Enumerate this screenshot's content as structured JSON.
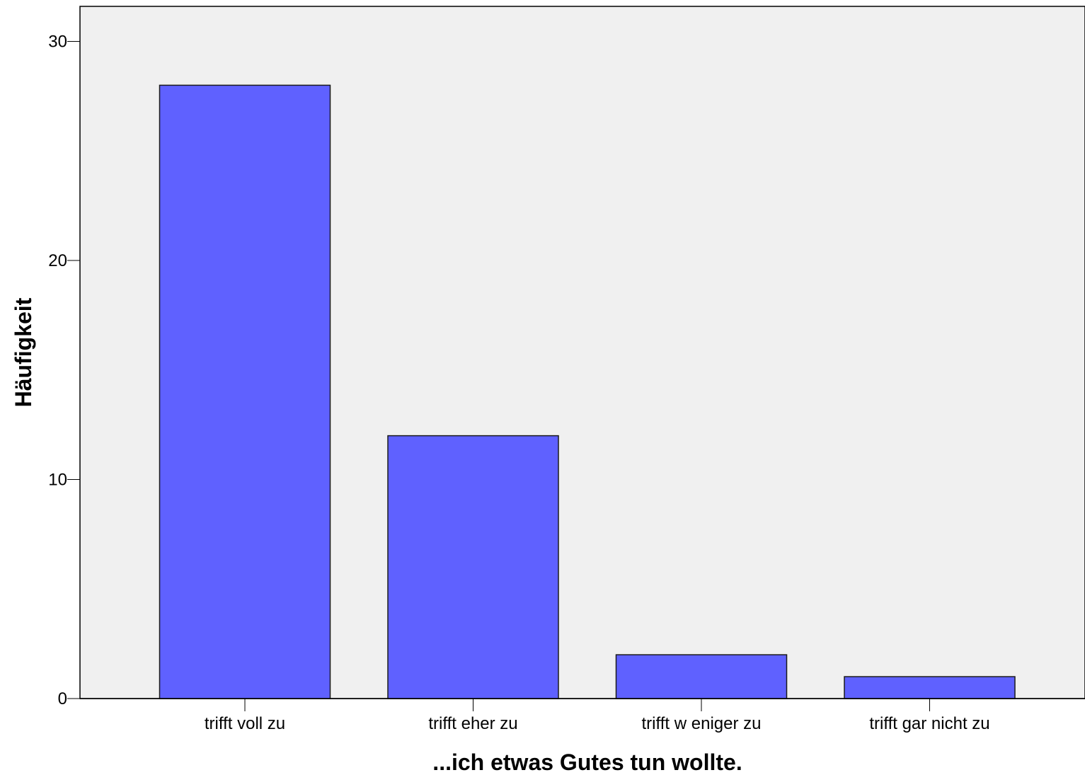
{
  "chart_data": {
    "type": "bar",
    "categories": [
      "trifft voll zu",
      "trifft eher zu",
      "trifft w eniger zu",
      "trifft gar nicht zu"
    ],
    "values": [
      28,
      12,
      2,
      1
    ],
    "xlabel": "...ich etwas Gutes tun wollte.",
    "ylabel": "Häufigkeit",
    "ylim": [
      0,
      31.6
    ],
    "yticks": [
      0,
      10,
      20,
      30
    ],
    "grid": false,
    "legend": "none",
    "colors": {
      "bar_fill": "#5f61ff",
      "bar_stroke": "#1a1a1a",
      "plot_background": "#f0f0f0",
      "axis": "#000000"
    }
  }
}
